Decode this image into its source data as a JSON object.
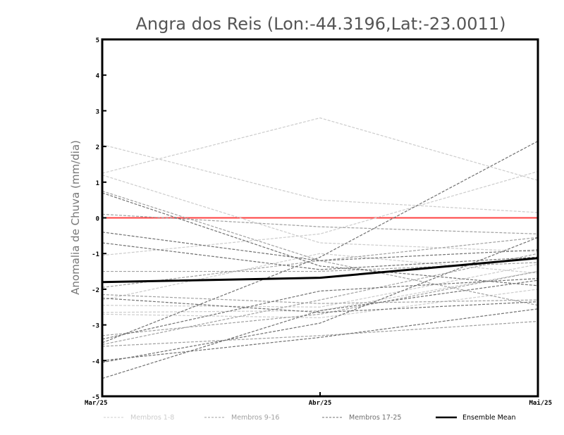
{
  "chart_data": {
    "type": "line",
    "title": "Angra dos Reis (Lon:-44.3196,Lat:-23.0011)",
    "xlabel": "",
    "ylabel": "Anomalia de Chuva (mm/dia)",
    "categories": [
      "Mar/25",
      "Abr/25",
      "Mai/25"
    ],
    "ylim": [
      -5,
      5
    ],
    "yticks": [
      -5,
      -4,
      -3,
      -2,
      -1,
      0,
      1,
      2,
      3,
      4,
      5
    ],
    "reference_line": {
      "value": 0,
      "color": "#ff4040"
    },
    "legend_position": "bottom",
    "groups": [
      {
        "name": "Membros 1-8",
        "color": "#cccccc"
      },
      {
        "name": "Membros 9-16",
        "color": "#a0a0a0"
      },
      {
        "name": "Membros 17-25",
        "color": "#707070"
      },
      {
        "name": "Ensemble Mean",
        "color": "#000000"
      }
    ],
    "series": [
      {
        "name": "Membro 1",
        "group": 0,
        "values": [
          2.05,
          0.5,
          0.15
        ]
      },
      {
        "name": "Membro 2",
        "group": 0,
        "values": [
          1.25,
          2.8,
          1.05
        ]
      },
      {
        "name": "Membro 3",
        "group": 0,
        "values": [
          1.2,
          -0.7,
          -0.95
        ]
      },
      {
        "name": "Membro 4",
        "group": 0,
        "values": [
          -1.05,
          -0.45,
          1.3
        ]
      },
      {
        "name": "Membro 5",
        "group": 0,
        "values": [
          -2.45,
          -2.5,
          -1.3
        ]
      },
      {
        "name": "Membro 6",
        "group": 0,
        "values": [
          -2.65,
          -2.6,
          -1.5
        ]
      },
      {
        "name": "Membro 7",
        "group": 0,
        "values": [
          -2.7,
          -2.8,
          -2.0
        ]
      },
      {
        "name": "Membro 8",
        "group": 0,
        "values": [
          -2.3,
          -1.0,
          -1.55
        ]
      },
      {
        "name": "Membro 9",
        "group": 1,
        "values": [
          0.75,
          -1.2,
          -2.45
        ]
      },
      {
        "name": "Membro 10",
        "group": 1,
        "values": [
          0.1,
          -0.25,
          -0.45
        ]
      },
      {
        "name": "Membro 11",
        "group": 1,
        "values": [
          -1.5,
          -1.5,
          -1.25
        ]
      },
      {
        "name": "Membro 12",
        "group": 1,
        "values": [
          -2.15,
          -2.4,
          -2.3
        ]
      },
      {
        "name": "Membro 13",
        "group": 1,
        "values": [
          -3.3,
          -2.7,
          -1.5
        ]
      },
      {
        "name": "Membro 14",
        "group": 1,
        "values": [
          -3.55,
          -2.3,
          -1.0
        ]
      },
      {
        "name": "Membro 15",
        "group": 1,
        "values": [
          -3.6,
          -3.3,
          -2.9
        ]
      },
      {
        "name": "Membro 16",
        "group": 1,
        "values": [
          -1.95,
          -1.2,
          -0.55
        ]
      },
      {
        "name": "Membro 17",
        "group": 2,
        "values": [
          -3.5,
          -1.1,
          2.15
        ]
      },
      {
        "name": "Membro 18",
        "group": 2,
        "values": [
          0.7,
          -1.35,
          -1.9
        ]
      },
      {
        "name": "Membro 19",
        "group": 2,
        "values": [
          -0.4,
          -1.2,
          -0.9
        ]
      },
      {
        "name": "Membro 20",
        "group": 2,
        "values": [
          -0.7,
          -1.45,
          -1.1
        ]
      },
      {
        "name": "Membro 21",
        "group": 2,
        "values": [
          -3.4,
          -2.05,
          -1.7
        ]
      },
      {
        "name": "Membro 22",
        "group": 2,
        "values": [
          -4.0,
          -3.35,
          -2.55
        ]
      },
      {
        "name": "Membro 23",
        "group": 2,
        "values": [
          -4.05,
          -2.95,
          -0.55
        ]
      },
      {
        "name": "Membro 24",
        "group": 2,
        "values": [
          -4.5,
          -2.6,
          -1.75
        ]
      },
      {
        "name": "Membro 25",
        "group": 2,
        "values": [
          -2.25,
          -2.65,
          -2.35
        ]
      },
      {
        "name": "Ensemble Mean",
        "group": 3,
        "values": [
          -1.8,
          -1.68,
          -1.13
        ]
      }
    ]
  }
}
